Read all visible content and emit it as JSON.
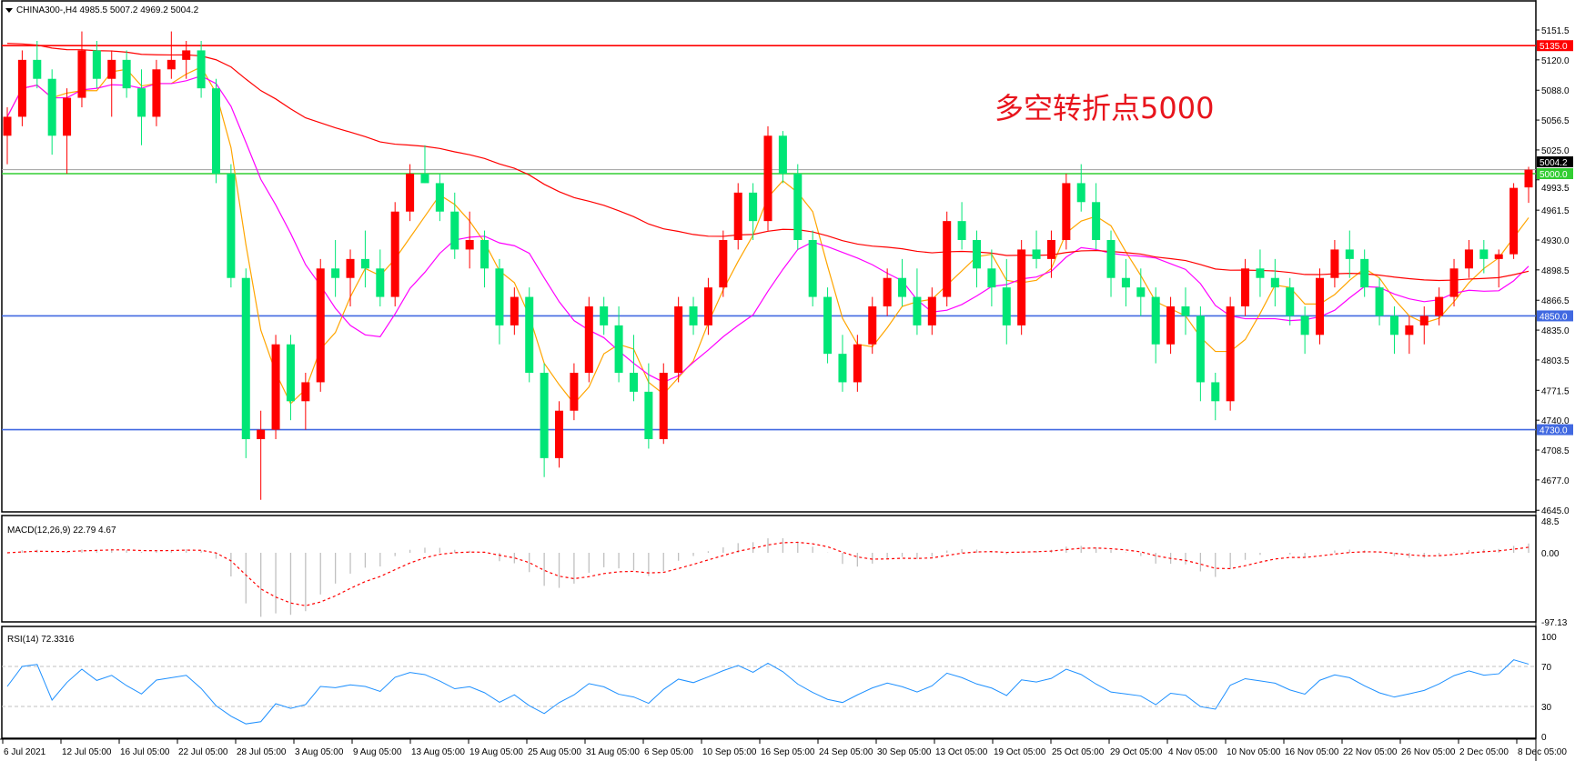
{
  "header": {
    "symbol_info": "CHINA300-,H4  4985.5 5007.2 4969.2 5004.2",
    "menu_icon": "triangle-down-icon"
  },
  "annotation": {
    "text": "多空转折点5000",
    "color": "#e8141c"
  },
  "colors": {
    "up": "#ff0000",
    "down": "#00e676",
    "ma_fast": "#ffa500",
    "ma_mid": "#ff00ff",
    "ma_slow": "#ff0000",
    "macd_hist": "#c0c0c0",
    "macd_signal": "#ff0000",
    "rsi": "#1e90ff"
  },
  "chart_data": [
    {
      "type": "candlestick",
      "name": "main",
      "ylim": [
        4645.0,
        5170.0
      ],
      "y_ticks": [
        "5151.5",
        "5120.0",
        "5088.0",
        "5056.5",
        "5025.0",
        "4993.5",
        "4961.5",
        "4930.0",
        "4898.5",
        "4866.5",
        "4835.0",
        "4803.5",
        "4771.5",
        "4740.0",
        "4708.5",
        "4677.0",
        "4645.0"
      ],
      "x_labels": [
        "6 Jul 2021",
        "12 Jul 05:00",
        "16 Jul 05:00",
        "22 Jul 05:00",
        "28 Jul 05:00",
        "3 Aug 05:00",
        "9 Aug 05:00",
        "13 Aug 05:00",
        "19 Aug 05:00",
        "25 Aug 05:00",
        "31 Aug 05:00",
        "6 Sep 05:00",
        "10 Sep 05:00",
        "16 Sep 05:00",
        "24 Sep 05:00",
        "30 Sep 05:00",
        "13 Oct 05:00",
        "19 Oct 05:00",
        "25 Oct 05:00",
        "29 Oct 05:00",
        "4 Nov 05:00",
        "10 Nov 05:00",
        "16 Nov 05:00",
        "22 Nov 05:00",
        "26 Nov 05:00",
        "2 Dec 05:00",
        "8 Dec 05:00"
      ],
      "hlines": [
        {
          "value": 5135.0,
          "label": "5135.0",
          "color": "#ff0000"
        },
        {
          "value": 5000.0,
          "label": "5000.0",
          "color": "#32cd32"
        },
        {
          "value": 4850.0,
          "label": "4850.0",
          "color": "#4169e1"
        },
        {
          "value": 4730.0,
          "label": "4730.0",
          "color": "#4169e1"
        }
      ],
      "last_price": {
        "value": 5004.2,
        "label": "5004.2"
      },
      "ohlc": [
        [
          5040,
          5070,
          5010,
          5060
        ],
        [
          5060,
          5130,
          5050,
          5120
        ],
        [
          5120,
          5140,
          5090,
          5100
        ],
        [
          5100,
          5110,
          5020,
          5040
        ],
        [
          5040,
          5090,
          5000,
          5080
        ],
        [
          5080,
          5150,
          5070,
          5130
        ],
        [
          5130,
          5140,
          5090,
          5100
        ],
        [
          5100,
          5130,
          5060,
          5120
        ],
        [
          5120,
          5130,
          5080,
          5090
        ],
        [
          5090,
          5110,
          5030,
          5060
        ],
        [
          5060,
          5120,
          5050,
          5110
        ],
        [
          5110,
          5150,
          5100,
          5120
        ],
        [
          5120,
          5140,
          5100,
          5130
        ],
        [
          5130,
          5140,
          5080,
          5090
        ],
        [
          5090,
          5100,
          4990,
          5000
        ],
        [
          5000,
          5010,
          4880,
          4890
        ],
        [
          4890,
          4900,
          4700,
          4720
        ],
        [
          4720,
          4750,
          4656,
          4730
        ],
        [
          4730,
          4830,
          4720,
          4820
        ],
        [
          4820,
          4830,
          4740,
          4760
        ],
        [
          4760,
          4790,
          4730,
          4780
        ],
        [
          4780,
          4910,
          4770,
          4900
        ],
        [
          4900,
          4930,
          4870,
          4890
        ],
        [
          4890,
          4920,
          4860,
          4910
        ],
        [
          4910,
          4940,
          4880,
          4900
        ],
        [
          4900,
          4920,
          4860,
          4870
        ],
        [
          4870,
          4970,
          4860,
          4960
        ],
        [
          4960,
          5010,
          4950,
          5000
        ],
        [
          5000,
          5030,
          4990,
          4990
        ],
        [
          4990,
          5000,
          4950,
          4960
        ],
        [
          4960,
          4980,
          4910,
          4920
        ],
        [
          4920,
          4960,
          4900,
          4930
        ],
        [
          4930,
          4940,
          4880,
          4900
        ],
        [
          4900,
          4910,
          4820,
          4840
        ],
        [
          4840,
          4880,
          4830,
          4870
        ],
        [
          4870,
          4880,
          4780,
          4790
        ],
        [
          4790,
          4800,
          4680,
          4700
        ],
        [
          4700,
          4760,
          4690,
          4750
        ],
        [
          4750,
          4800,
          4740,
          4790
        ],
        [
          4790,
          4870,
          4780,
          4860
        ],
        [
          4860,
          4870,
          4830,
          4840
        ],
        [
          4840,
          4860,
          4780,
          4790
        ],
        [
          4790,
          4830,
          4760,
          4770
        ],
        [
          4770,
          4800,
          4710,
          4720
        ],
        [
          4720,
          4800,
          4715,
          4790
        ],
        [
          4790,
          4870,
          4780,
          4860
        ],
        [
          4860,
          4870,
          4830,
          4840
        ],
        [
          4840,
          4890,
          4830,
          4880
        ],
        [
          4880,
          4940,
          4870,
          4930
        ],
        [
          4930,
          4990,
          4920,
          4980
        ],
        [
          4980,
          4990,
          4930,
          4950
        ],
        [
          4950,
          5050,
          4940,
          5040
        ],
        [
          5040,
          5045,
          4990,
          5000
        ],
        [
          5000,
          5010,
          4920,
          4930
        ],
        [
          4930,
          4940,
          4860,
          4870
        ],
        [
          4870,
          4880,
          4800,
          4810
        ],
        [
          4810,
          4830,
          4770,
          4780
        ],
        [
          4780,
          4830,
          4770,
          4820
        ],
        [
          4820,
          4870,
          4810,
          4860
        ],
        [
          4860,
          4900,
          4850,
          4890
        ],
        [
          4890,
          4910,
          4860,
          4870
        ],
        [
          4870,
          4900,
          4830,
          4840
        ],
        [
          4840,
          4880,
          4830,
          4870
        ],
        [
          4870,
          4960,
          4860,
          4950
        ],
        [
          4950,
          4970,
          4920,
          4930
        ],
        [
          4930,
          4940,
          4880,
          4900
        ],
        [
          4900,
          4920,
          4860,
          4880
        ],
        [
          4880,
          4910,
          4820,
          4840
        ],
        [
          4840,
          4930,
          4830,
          4920
        ],
        [
          4920,
          4940,
          4900,
          4910
        ],
        [
          4910,
          4940,
          4890,
          4930
        ],
        [
          4930,
          5000,
          4920,
          4990
        ],
        [
          4990,
          5010,
          4960,
          4970
        ],
        [
          4970,
          4990,
          4920,
          4930
        ],
        [
          4930,
          4940,
          4870,
          4890
        ],
        [
          4890,
          4910,
          4860,
          4880
        ],
        [
          4880,
          4900,
          4850,
          4870
        ],
        [
          4870,
          4880,
          4800,
          4820
        ],
        [
          4820,
          4870,
          4810,
          4860
        ],
        [
          4860,
          4880,
          4830,
          4850
        ],
        [
          4850,
          4860,
          4760,
          4780
        ],
        [
          4780,
          4790,
          4740,
          4760
        ],
        [
          4760,
          4870,
          4750,
          4860
        ],
        [
          4860,
          4910,
          4850,
          4900
        ],
        [
          4900,
          4920,
          4870,
          4890
        ],
        [
          4890,
          4910,
          4860,
          4880
        ],
        [
          4880,
          4890,
          4840,
          4850
        ],
        [
          4850,
          4860,
          4810,
          4830
        ],
        [
          4830,
          4900,
          4820,
          4890
        ],
        [
          4890,
          4930,
          4880,
          4920
        ],
        [
          4920,
          4940,
          4890,
          4910
        ],
        [
          4910,
          4920,
          4870,
          4880
        ],
        [
          4880,
          4890,
          4840,
          4850
        ],
        [
          4850,
          4860,
          4810,
          4830
        ],
        [
          4830,
          4850,
          4810,
          4840
        ],
        [
          4840,
          4860,
          4820,
          4850
        ],
        [
          4850,
          4880,
          4840,
          4870
        ],
        [
          4870,
          4910,
          4860,
          4900
        ],
        [
          4900,
          4930,
          4890,
          4920
        ],
        [
          4920,
          4930,
          4895,
          4910
        ],
        [
          4910,
          4920,
          4880,
          4915
        ],
        [
          4915,
          4990,
          4910,
          4985
        ],
        [
          4985.5,
          5007.2,
          4969.2,
          5004.2
        ]
      ]
    },
    {
      "type": "bar+line",
      "name": "macd",
      "label": "MACD(12,26,9) 22.79 4.67",
      "ylim": [
        -97.13,
        48.5
      ],
      "y_ticks": [
        "48.5",
        "0.00",
        "-97.13"
      ]
    },
    {
      "type": "line",
      "name": "rsi",
      "label": "RSI(14) 72.3316",
      "ylim": [
        0,
        100
      ],
      "y_ticks": [
        "100",
        "70",
        "30",
        "0"
      ],
      "levels": [
        70,
        30
      ]
    }
  ]
}
